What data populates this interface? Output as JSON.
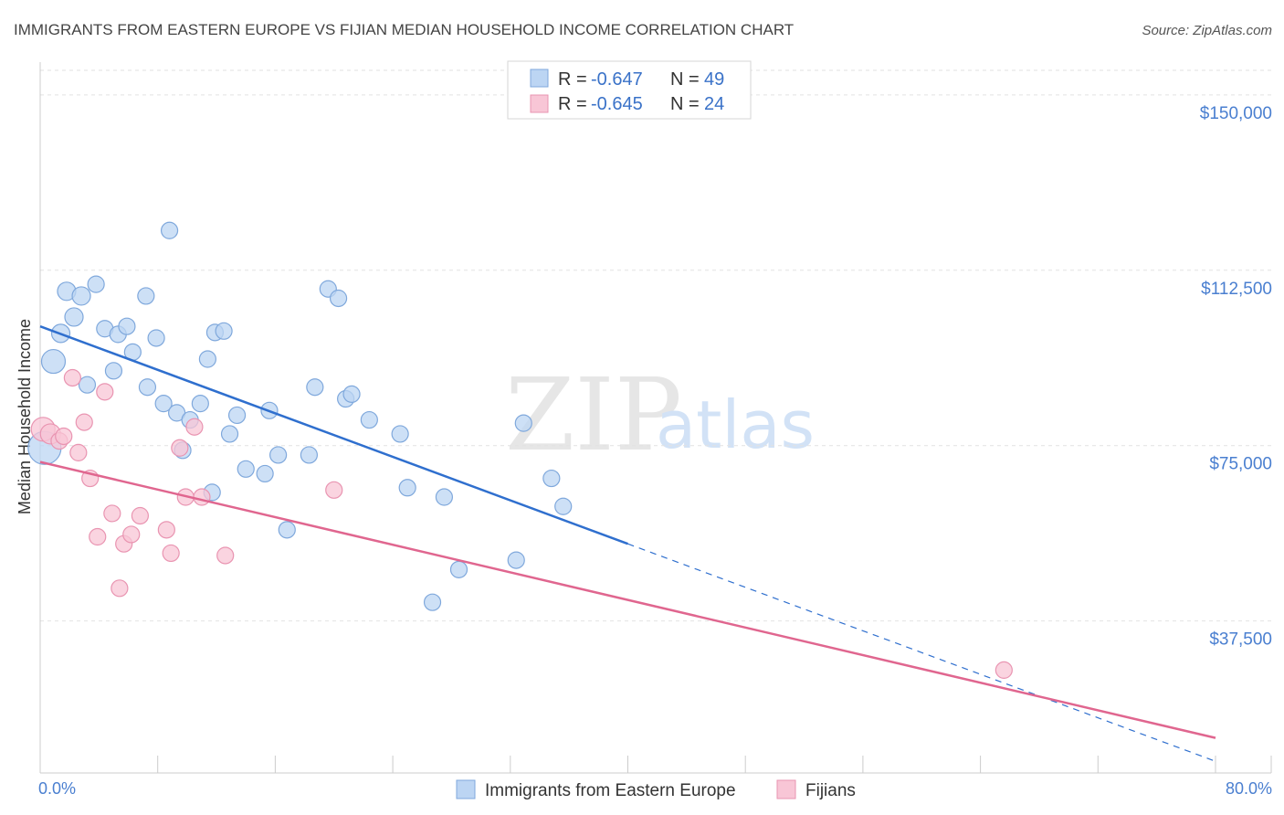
{
  "chart_data": {
    "type": "scatter",
    "title": "IMMIGRANTS FROM EASTERN EUROPE VS FIJIAN MEDIAN HOUSEHOLD INCOME CORRELATION CHART",
    "source": "Source: ZipAtlas.com",
    "ylabel": "Median Household Income",
    "xlim": [
      0,
      80
    ],
    "ylim": [
      5000,
      157000
    ],
    "x_tick_labels": {
      "left": "0.0%",
      "right": "80.0%"
    },
    "y_ticks": [
      {
        "value": 150000,
        "label": "$150,000"
      },
      {
        "value": 112500,
        "label": "$112,500"
      },
      {
        "value": 75000,
        "label": "$75,000"
      },
      {
        "value": 37500,
        "label": "$37,500"
      }
    ],
    "watermark": {
      "zip": "ZIP",
      "atlas": "atlas"
    },
    "legend": [
      {
        "r_label": "R =",
        "r_value": "-0.647",
        "n_label": "N =",
        "n_value": "49"
      },
      {
        "r_label": "R =",
        "r_value": "-0.645",
        "n_label": "N =",
        "n_value": "24"
      }
    ],
    "colors": {
      "blue_fill": "#bcd5f3",
      "blue_stroke": "#7fa8dc",
      "blue_line": "#2f6fce",
      "pink_fill": "#f8c6d6",
      "pink_stroke": "#e994b1",
      "pink_line": "#e0668f",
      "grid": "#e2e2e2",
      "axis": "#cccccc"
    },
    "series": [
      {
        "name": "Immigrants from Eastern Europe",
        "trend": {
          "x0": 0,
          "y0": 100500,
          "x1": 40,
          "y1": 54000,
          "dash_x1": 80,
          "dash_y1": 7500
        },
        "points": [
          [
            0.3,
            74500,
            18
          ],
          [
            0.9,
            93000,
            13
          ],
          [
            1.4,
            99000,
            10
          ],
          [
            1.8,
            108000,
            10
          ],
          [
            2.3,
            102500,
            10
          ],
          [
            2.8,
            107000,
            10
          ],
          [
            3.2,
            88000,
            9
          ],
          [
            3.8,
            109500,
            9
          ],
          [
            4.4,
            100000,
            9
          ],
          [
            5.0,
            91000,
            9
          ],
          [
            5.3,
            98800,
            9
          ],
          [
            5.9,
            100500,
            9
          ],
          [
            6.3,
            95000,
            9
          ],
          [
            7.2,
            107000,
            9
          ],
          [
            7.3,
            87500,
            9
          ],
          [
            7.9,
            98000,
            9
          ],
          [
            8.4,
            84000,
            9
          ],
          [
            8.8,
            121000,
            9
          ],
          [
            9.3,
            82000,
            9
          ],
          [
            9.7,
            74000,
            9
          ],
          [
            10.2,
            80500,
            9
          ],
          [
            10.9,
            84000,
            9
          ],
          [
            11.4,
            93500,
            9
          ],
          [
            11.7,
            65000,
            9
          ],
          [
            11.9,
            99200,
            9
          ],
          [
            12.5,
            99500,
            9
          ],
          [
            12.9,
            77500,
            9
          ],
          [
            13.4,
            81500,
            9
          ],
          [
            14.0,
            70000,
            9
          ],
          [
            15.3,
            69000,
            9
          ],
          [
            15.6,
            82500,
            9
          ],
          [
            16.2,
            73000,
            9
          ],
          [
            16.8,
            57000,
            9
          ],
          [
            18.3,
            73000,
            9
          ],
          [
            18.7,
            87500,
            9
          ],
          [
            19.6,
            108500,
            9
          ],
          [
            20.3,
            106500,
            9
          ],
          [
            20.8,
            85000,
            9
          ],
          [
            21.2,
            86000,
            9
          ],
          [
            22.4,
            80500,
            9
          ],
          [
            24.5,
            77500,
            9
          ],
          [
            25.0,
            66000,
            9
          ],
          [
            26.7,
            41500,
            9
          ],
          [
            27.5,
            64000,
            9
          ],
          [
            28.5,
            48500,
            9
          ],
          [
            32.4,
            50500,
            9
          ],
          [
            32.9,
            79800,
            9
          ],
          [
            34.8,
            68000,
            9
          ],
          [
            35.6,
            62000,
            9
          ]
        ]
      },
      {
        "name": "Fijians",
        "trend": {
          "x0": 0,
          "y0": 71500,
          "x1": 80,
          "y1": 12500
        },
        "points": [
          [
            0.2,
            78500,
            13
          ],
          [
            0.7,
            77500,
            11
          ],
          [
            1.3,
            76000,
            9
          ],
          [
            1.6,
            77000,
            9
          ],
          [
            2.2,
            89500,
            9
          ],
          [
            2.6,
            73500,
            9
          ],
          [
            3.0,
            80000,
            9
          ],
          [
            3.4,
            68000,
            9
          ],
          [
            3.9,
            55500,
            9
          ],
          [
            4.4,
            86500,
            9
          ],
          [
            4.9,
            60500,
            9
          ],
          [
            5.4,
            44500,
            9
          ],
          [
            5.7,
            54000,
            9
          ],
          [
            6.2,
            56000,
            9
          ],
          [
            6.8,
            60000,
            9
          ],
          [
            8.6,
            57000,
            9
          ],
          [
            8.9,
            52000,
            9
          ],
          [
            9.5,
            74500,
            9
          ],
          [
            9.9,
            64000,
            9
          ],
          [
            10.5,
            79000,
            9
          ],
          [
            11.0,
            64000,
            9
          ],
          [
            12.6,
            51500,
            9
          ],
          [
            20.0,
            65500,
            9
          ],
          [
            65.6,
            27000,
            9
          ]
        ]
      }
    ]
  }
}
